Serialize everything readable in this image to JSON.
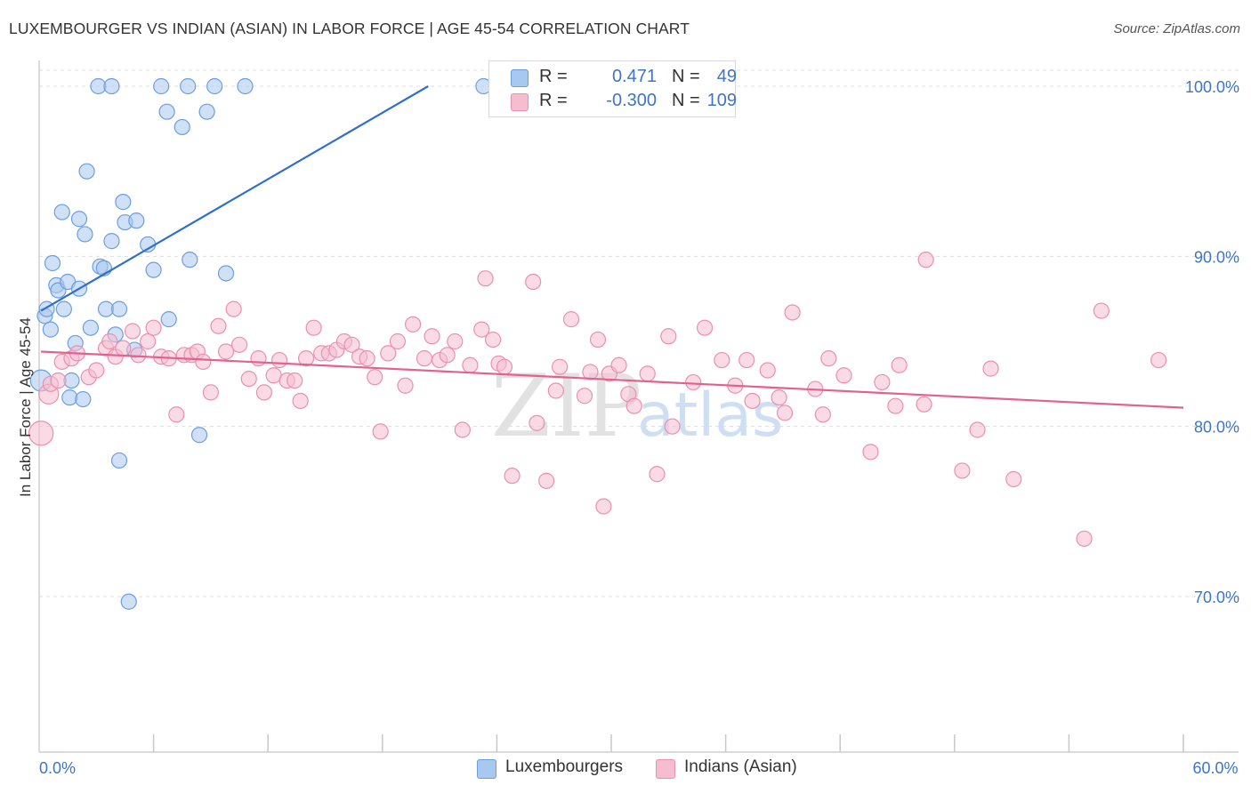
{
  "title": "LUXEMBOURGER VS INDIAN (ASIAN) IN LABOR FORCE | AGE 45-54 CORRELATION CHART",
  "source": "Source: ZipAtlas.com",
  "watermark": {
    "zip": "ZIP",
    "atlas": "atlas"
  },
  "legend": {
    "series": [
      {
        "r_label": "R =",
        "r_value": "0.471",
        "n_label": "N =",
        "n_value": "49"
      },
      {
        "r_label": "R =",
        "r_value": "-0.300",
        "n_label": "N =",
        "n_value": "109"
      }
    ]
  },
  "bottom_legend": [
    "Luxembourgers",
    "Indians (Asian)"
  ],
  "colors": {
    "blue_fill": "#a9c8f0",
    "blue_stroke": "#6b9ee0",
    "blue_line": "#2f6fd0",
    "pink_fill": "#f6bdd0",
    "pink_stroke": "#ec8fae",
    "pink_line": "#e4608e",
    "tick_text": "#3f74c6",
    "grid": "#dedede"
  },
  "chart_data": {
    "type": "scatter",
    "title": "LUXEMBOURGER VS INDIAN (ASIAN) IN LABOR FORCE | AGE 45-54 CORRELATION CHART",
    "xlabel": "",
    "ylabel": "In Labor Force | Age 45-54",
    "xlim": [
      0,
      60
    ],
    "ylim": [
      60,
      102
    ],
    "x_tick_labels": [
      {
        "value": 0,
        "label": "0.0%"
      },
      {
        "value": 60,
        "label": "60.0%"
      }
    ],
    "x_minor_ticks": [
      6,
      12,
      18,
      24,
      30,
      36,
      42,
      48,
      54,
      60
    ],
    "y_ticks": [
      {
        "value": 100,
        "label": "100.0%"
      },
      {
        "value": 90,
        "label": "90.0%"
      },
      {
        "value": 80,
        "label": "80.0%"
      },
      {
        "value": 70,
        "label": "70.0%"
      }
    ],
    "series": [
      {
        "name": "Luxembourgers",
        "color": "blue",
        "trend": {
          "x": [
            0.1,
            20.4
          ],
          "y": [
            86.8,
            100.0
          ]
        },
        "points": [
          [
            0.1,
            82.7,
            1.4
          ],
          [
            0.3,
            86.5,
            1
          ],
          [
            0.4,
            86.9,
            1
          ],
          [
            0.6,
            85.7,
            1
          ],
          [
            0.7,
            89.6,
            1
          ],
          [
            0.9,
            88.3,
            1
          ],
          [
            1.0,
            88.0,
            1
          ],
          [
            1.3,
            86.9,
            1
          ],
          [
            1.5,
            88.5,
            1
          ],
          [
            1.2,
            92.6,
            1
          ],
          [
            1.6,
            81.7,
            1
          ],
          [
            1.7,
            82.7,
            1
          ],
          [
            1.9,
            84.9,
            1
          ],
          [
            2.1,
            88.1,
            1
          ],
          [
            2.1,
            92.2,
            1
          ],
          [
            2.3,
            81.6,
            1
          ],
          [
            2.4,
            91.3,
            1
          ],
          [
            2.5,
            95.0,
            1
          ],
          [
            2.7,
            85.8,
            1
          ],
          [
            3.1,
            100.0,
            1
          ],
          [
            3.2,
            89.4,
            1
          ],
          [
            3.4,
            89.3,
            1
          ],
          [
            3.5,
            86.9,
            1
          ],
          [
            3.8,
            100.0,
            1
          ],
          [
            3.8,
            90.9,
            1
          ],
          [
            4.0,
            85.4,
            1
          ],
          [
            4.2,
            86.9,
            1
          ],
          [
            4.2,
            78.0,
            1
          ],
          [
            4.4,
            93.2,
            1
          ],
          [
            4.5,
            92.0,
            1
          ],
          [
            4.7,
            69.7,
            1
          ],
          [
            5.0,
            84.5,
            1
          ],
          [
            5.1,
            92.1,
            1
          ],
          [
            5.7,
            90.7,
            1
          ],
          [
            6.0,
            89.2,
            1
          ],
          [
            6.4,
            100.0,
            1
          ],
          [
            6.8,
            86.3,
            1
          ],
          [
            6.7,
            98.5,
            1
          ],
          [
            7.5,
            97.6,
            1
          ],
          [
            7.8,
            100.0,
            1
          ],
          [
            7.9,
            89.8,
            1
          ],
          [
            8.4,
            79.5,
            1
          ],
          [
            8.8,
            98.5,
            1
          ],
          [
            9.2,
            100.0,
            1
          ],
          [
            9.8,
            89.0,
            1
          ],
          [
            10.8,
            100.0,
            1
          ],
          [
            23.3,
            100.0,
            1
          ]
        ]
      },
      {
        "name": "Indians (Asian)",
        "color": "pink",
        "trend": {
          "x": [
            0.1,
            60.0
          ],
          "y": [
            84.4,
            81.1
          ]
        },
        "points": [
          [
            0.1,
            79.6,
            1.6
          ],
          [
            0.5,
            81.9,
            1.3
          ],
          [
            0.6,
            82.5,
            1
          ],
          [
            1.0,
            82.7,
            1
          ],
          [
            1.2,
            83.8,
            1
          ],
          [
            1.7,
            84.0,
            1
          ],
          [
            2.0,
            84.3,
            1
          ],
          [
            2.6,
            82.9,
            1
          ],
          [
            3.0,
            83.3,
            1
          ],
          [
            3.5,
            84.6,
            1
          ],
          [
            3.7,
            85.0,
            1
          ],
          [
            4.0,
            84.1,
            1
          ],
          [
            4.4,
            84.6,
            1
          ],
          [
            4.9,
            85.6,
            1
          ],
          [
            5.2,
            84.2,
            1
          ],
          [
            5.7,
            85.0,
            1
          ],
          [
            6.0,
            85.8,
            1
          ],
          [
            6.4,
            84.1,
            1
          ],
          [
            6.8,
            84.0,
            1
          ],
          [
            7.2,
            80.7,
            1
          ],
          [
            7.6,
            84.2,
            1
          ],
          [
            8.0,
            84.2,
            1
          ],
          [
            8.3,
            84.4,
            1
          ],
          [
            8.6,
            83.8,
            1
          ],
          [
            9.0,
            82.0,
            1
          ],
          [
            9.4,
            85.9,
            1
          ],
          [
            9.8,
            84.4,
            1
          ],
          [
            10.2,
            86.9,
            1
          ],
          [
            10.5,
            84.8,
            1
          ],
          [
            11.0,
            82.8,
            1
          ],
          [
            11.5,
            84.0,
            1
          ],
          [
            11.8,
            82.0,
            1
          ],
          [
            12.3,
            83.0,
            1
          ],
          [
            12.6,
            83.9,
            1
          ],
          [
            13.0,
            82.7,
            1
          ],
          [
            13.4,
            82.7,
            1
          ],
          [
            13.7,
            81.5,
            1
          ],
          [
            14.0,
            84.0,
            1
          ],
          [
            14.4,
            85.8,
            1
          ],
          [
            14.8,
            84.3,
            1
          ],
          [
            15.2,
            84.3,
            1
          ],
          [
            15.6,
            84.5,
            1
          ],
          [
            16.0,
            85.0,
            1
          ],
          [
            16.4,
            84.8,
            1
          ],
          [
            16.8,
            84.1,
            1
          ],
          [
            17.2,
            84.0,
            1
          ],
          [
            17.6,
            82.9,
            1
          ],
          [
            17.9,
            79.7,
            1
          ],
          [
            18.3,
            84.3,
            1
          ],
          [
            18.8,
            85.0,
            1
          ],
          [
            19.2,
            82.4,
            1
          ],
          [
            19.6,
            86.0,
            1
          ],
          [
            20.2,
            84.0,
            1
          ],
          [
            20.6,
            85.3,
            1
          ],
          [
            21.0,
            83.9,
            1
          ],
          [
            21.4,
            84.2,
            1
          ],
          [
            21.8,
            85.0,
            1
          ],
          [
            22.2,
            79.8,
            1
          ],
          [
            22.6,
            83.6,
            1
          ],
          [
            23.2,
            85.7,
            1
          ],
          [
            23.4,
            88.7,
            1
          ],
          [
            23.8,
            85.1,
            1
          ],
          [
            24.1,
            83.7,
            1
          ],
          [
            24.4,
            83.5,
            1
          ],
          [
            24.8,
            77.1,
            1
          ],
          [
            25.9,
            88.5,
            1
          ],
          [
            26.1,
            80.2,
            1
          ],
          [
            26.6,
            76.8,
            1
          ],
          [
            27.1,
            82.1,
            1
          ],
          [
            27.3,
            83.5,
            1
          ],
          [
            27.9,
            86.3,
            1
          ],
          [
            28.6,
            81.8,
            1
          ],
          [
            28.9,
            83.2,
            1
          ],
          [
            29.3,
            85.1,
            1
          ],
          [
            29.6,
            75.3,
            1
          ],
          [
            29.9,
            83.1,
            1
          ],
          [
            30.4,
            83.6,
            1
          ],
          [
            30.9,
            81.9,
            1
          ],
          [
            31.2,
            81.2,
            1
          ],
          [
            31.9,
            83.1,
            1
          ],
          [
            32.4,
            77.2,
            1
          ],
          [
            33.0,
            85.3,
            1
          ],
          [
            33.2,
            80.0,
            1
          ],
          [
            34.3,
            82.6,
            1
          ],
          [
            34.9,
            85.8,
            1
          ],
          [
            35.8,
            83.9,
            1
          ],
          [
            36.5,
            82.4,
            1
          ],
          [
            37.1,
            83.9,
            1
          ],
          [
            37.4,
            81.5,
            1
          ],
          [
            38.2,
            83.3,
            1
          ],
          [
            38.8,
            81.7,
            1
          ],
          [
            39.1,
            80.8,
            1
          ],
          [
            39.5,
            86.7,
            1
          ],
          [
            40.7,
            82.2,
            1
          ],
          [
            41.1,
            80.7,
            1
          ],
          [
            41.4,
            84.0,
            1
          ],
          [
            42.2,
            83.0,
            1
          ],
          [
            43.6,
            78.5,
            1
          ],
          [
            44.2,
            82.6,
            1
          ],
          [
            44.9,
            81.2,
            1
          ],
          [
            45.1,
            83.6,
            1
          ],
          [
            46.4,
            81.3,
            1
          ],
          [
            46.5,
            89.8,
            1
          ],
          [
            48.4,
            77.4,
            1
          ],
          [
            49.2,
            79.8,
            1
          ],
          [
            49.9,
            83.4,
            1
          ],
          [
            51.1,
            76.9,
            1
          ],
          [
            54.8,
            73.4,
            1
          ],
          [
            55.7,
            86.8,
            1
          ],
          [
            58.7,
            83.9,
            1
          ]
        ]
      }
    ]
  }
}
